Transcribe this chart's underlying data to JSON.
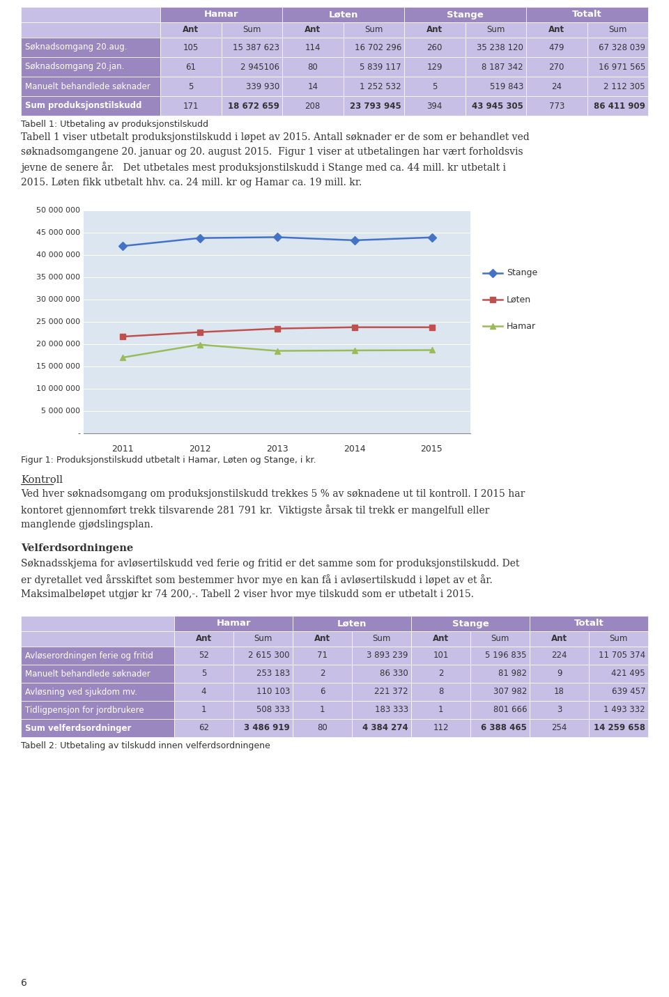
{
  "page_bg": "#ffffff",
  "table1": {
    "title_caption": "Tabell 1: Utbetaling av produksjonstilskudd",
    "header_bg": "#9b87c0",
    "subheader_bg": "#c8bfe7",
    "col_groups": [
      "Hamar",
      "Løten",
      "Stange",
      "Totalt"
    ],
    "col_subs": [
      "Ant",
      "Sum",
      "Ant",
      "Sum",
      "Ant",
      "Sum",
      "Ant",
      "Sum"
    ],
    "rows": [
      [
        "Søknadsomgang 20.aug.",
        "105",
        "15 387 623",
        "114",
        "16 702 296",
        "260",
        "35 238 120",
        "479",
        "67 328 039"
      ],
      [
        "Søknadsomgang 20.jan.",
        "61",
        "2 945106",
        "80",
        "5 839 117",
        "129",
        "8 187 342",
        "270",
        "16 971 565"
      ],
      [
        "Manuelt behandlede søknader",
        "5",
        "339 930",
        "14",
        "1 252 532",
        "5",
        "519 843",
        "24",
        "2 112 305"
      ],
      [
        "Sum produksjonstilskudd",
        "171",
        "18 672 659",
        "208",
        "23 793 945",
        "394",
        "43 945 305",
        "773",
        "86 411 909"
      ]
    ],
    "bold_rows": [
      false,
      false,
      false,
      true
    ]
  },
  "body_text1": "Tabell 1 viser utbetalt produksjonstilskudd i løpet av 2015. Antall søknader er de som er behandlet ved\nsøknadsomgangene 20. januar og 20. august 2015.  Figur 1 viser at utbetalingen har vært forholdsvis\njevne de senere år.   Det utbetales mest produksjonstilskudd i Stange med ca. 44 mill. kr utbetalt i\n2015. Løten fikk utbetalt hhv. ca. 24 mill. kr og Hamar ca. 19 mill. kr.",
  "chart": {
    "years": [
      2011,
      2012,
      2013,
      2014,
      2015
    ],
    "stange": [
      42000000,
      43800000,
      44000000,
      43300000,
      43945305
    ],
    "loten": [
      21700000,
      22700000,
      23500000,
      23800000,
      23793945
    ],
    "hamar": [
      17000000,
      19900000,
      18500000,
      18600000,
      18672659
    ],
    "stange_color": "#4472c4",
    "loten_color": "#c0504d",
    "hamar_color": "#9bbb59",
    "bg_color": "#dce6f1",
    "yticks": [
      0,
      5000000,
      10000000,
      15000000,
      20000000,
      25000000,
      30000000,
      35000000,
      40000000,
      45000000,
      50000000
    ],
    "ylim": [
      0,
      50000000
    ],
    "xlabel_caption": "Figur 1: Produksjonstilskudd utbetalt i Hamar, Løten og Stange, i kr."
  },
  "kontroll_header": "Kontroll",
  "kontroll_text": "Ved hver søknadsomgang om produksjonstilskudd trekkes 5 % av søknadene ut til kontroll. I 2015 har\nkontoret gjennomført trekk tilsvarende 281 791 kr.  Viktigste årsak til trekk er mangelfull eller\nmanglende gjødslingsplan.",
  "velf_header": "Velferdsordningene",
  "velf_text": "Søknadsskjema for avløsertilskudd ved ferie og fritid er det samme som for produksjonstilskudd. Det\ner dyretallet ved årsskiftet som bestemmer hvor mye en kan få i avløsertilskudd i løpet av et år.\nMaksimalbeløpet utgjør kr 74 200,-. Tabell 2 viser hvor mye tilskudd som er utbetalt i 2015.",
  "table2": {
    "title_caption": "Tabell 2: Utbetaling av tilskudd innen velferdsordningene",
    "header_bg": "#9b87c0",
    "subheader_bg": "#c8bfe7",
    "col_groups": [
      "Hamar",
      "Løten",
      "Stange",
      "Totalt"
    ],
    "col_subs": [
      "Ant",
      "Sum",
      "Ant",
      "Sum",
      "Ant",
      "Sum",
      "Ant",
      "Sum"
    ],
    "rows": [
      [
        "Avløserordningen ferie og fritid",
        "52",
        "2 615 300",
        "71",
        "3 893 239",
        "101",
        "5 196 835",
        "224",
        "11 705 374"
      ],
      [
        "Manuelt behandlede søknader",
        "5",
        "253 183",
        "2",
        "86 330",
        "2",
        "81 982",
        "9",
        "421 495"
      ],
      [
        "Avløsning ved sjukdom mv.",
        "4",
        "110 103",
        "6",
        "221 372",
        "8",
        "307 982",
        "18",
        "639 457"
      ],
      [
        "Tidligpensjon for jordbrukere",
        "1",
        "508 333",
        "1",
        "183 333",
        "1",
        "801 666",
        "3",
        "1 493 332"
      ],
      [
        "Sum velferdsordninger",
        "62",
        "3 486 919",
        "80",
        "4 384 274",
        "112",
        "6 388 465",
        "254",
        "14 259 658"
      ]
    ],
    "bold_rows": [
      false,
      false,
      false,
      false,
      true
    ]
  },
  "footer": "6"
}
